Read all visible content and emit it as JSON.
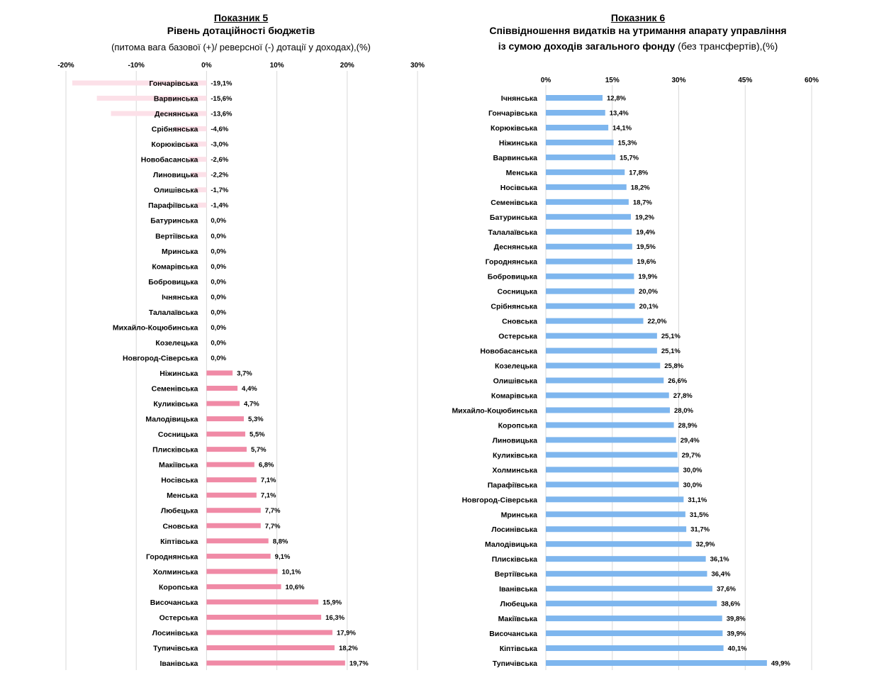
{
  "chart_data": [
    {
      "type": "bar",
      "orientation": "horizontal",
      "indicator": "Показник 5",
      "title": "Рівень дотаційності бюджетів",
      "subtitle": "(питома вага базової (+)/ реверсної (-) дотації  у доходах),(%)",
      "xlim": [
        -20,
        30
      ],
      "ticks": [
        -20,
        -10,
        0,
        10,
        20,
        30
      ],
      "tick_labels": [
        "-20%",
        "-10%",
        "0%",
        "10%",
        "20%",
        "30%"
      ],
      "grid": true,
      "colors": {
        "positive": "#f08aa6",
        "negative": "#fce0e8"
      },
      "categories": [
        "Гончарівська",
        "Варвинська",
        "Деснянська",
        "Срібнянська",
        "Корюківська",
        "Новобасанська",
        "Линовицька",
        "Олишівська",
        "Парафіївська",
        "Батуринська",
        "Вертіївська",
        "Мринська",
        "Комарівська",
        "Бобровицька",
        "Ічнянська",
        "Талалаївська",
        "Михайло-Коцюбинська",
        "Козелецька",
        "Новгород-Сіверська",
        "Ніжинська",
        "Семенівська",
        "Куликівська",
        "Малодівицька",
        "Сосницька",
        "Плисківська",
        "Макіївська",
        "Носівська",
        "Менська",
        "Любецька",
        "Сновська",
        "Кіптівська",
        "Городнянська",
        "Холминська",
        "Коропська",
        "Височанська",
        "Остерська",
        "Лосинівська",
        "Тупичівська",
        "Іванівська"
      ],
      "values": [
        -19.1,
        -15.6,
        -13.6,
        -4.6,
        -3.0,
        -2.6,
        -2.2,
        -1.7,
        -1.4,
        0.0,
        0.0,
        0.0,
        0.0,
        0.0,
        0.0,
        0.0,
        0.0,
        0.0,
        0.0,
        3.7,
        4.4,
        4.7,
        5.3,
        5.5,
        5.7,
        6.8,
        7.1,
        7.1,
        7.7,
        7.7,
        8.8,
        9.1,
        10.1,
        10.6,
        15.9,
        16.3,
        17.9,
        18.2,
        19.7
      ],
      "labels": [
        "-19,1%",
        "-15,6%",
        "-13,6%",
        "-4,6%",
        "-3,0%",
        "-2,6%",
        "-2,2%",
        "-1,7%",
        "-1,4%",
        "0,0%",
        "0,0%",
        "0,0%",
        "0,0%",
        "0,0%",
        "0,0%",
        "0,0%",
        "0,0%",
        "0,0%",
        "0,0%",
        "3,7%",
        "4,4%",
        "4,7%",
        "5,3%",
        "5,5%",
        "5,7%",
        "6,8%",
        "7,1%",
        "7,1%",
        "7,7%",
        "7,7%",
        "8,8%",
        "9,1%",
        "10,1%",
        "10,6%",
        "15,9%",
        "16,3%",
        "17,9%",
        "18,2%",
        "19,7%"
      ]
    },
    {
      "type": "bar",
      "orientation": "horizontal",
      "indicator": "Показник 6",
      "title_line1": "Співвідношення видатків на утримання апарату управління",
      "title_line2": "із сумою доходів загального фонду",
      "title_line2_suffix": " (без трансфертів),(%)",
      "xlim": [
        0,
        60
      ],
      "ticks": [
        0,
        15,
        30,
        45,
        60
      ],
      "tick_labels": [
        "0%",
        "15%",
        "30%",
        "45%",
        "60%"
      ],
      "grid": true,
      "colors": {
        "positive": "#7eb6ee"
      },
      "categories": [
        "Ічнянська",
        "Гончарівська",
        "Корюківська",
        "Ніжинська",
        "Варвинська",
        "Менська",
        "Носівська",
        "Семенівська",
        "Батуринська",
        "Талалаївська",
        "Деснянська",
        "Городнянська",
        "Бобровицька",
        "Сосницька",
        "Срібнянська",
        "Сновська",
        "Остерська",
        "Новобасанська",
        "Козелецька",
        "Олишівська",
        "Комарівська",
        "Михайло-Коцюбинська",
        "Коропська",
        "Линовицька",
        "Куликівська",
        "Холминська",
        "Парафіївська",
        "Новгород-Сіверська",
        "Мринська",
        "Лосинівська",
        "Малодівицька",
        "Плисківська",
        "Вертіївська",
        "Іванівська",
        "Любецька",
        "Макіївська",
        "Височанська",
        "Кіптівська",
        "Тупичівська"
      ],
      "values": [
        12.8,
        13.4,
        14.1,
        15.3,
        15.7,
        17.8,
        18.2,
        18.7,
        19.2,
        19.4,
        19.5,
        19.6,
        19.9,
        20.0,
        20.1,
        22.0,
        25.1,
        25.1,
        25.8,
        26.6,
        27.8,
        28.0,
        28.9,
        29.4,
        29.7,
        30.0,
        30.0,
        31.1,
        31.5,
        31.7,
        32.9,
        36.1,
        36.4,
        37.6,
        38.6,
        39.8,
        39.9,
        40.1,
        49.9
      ],
      "labels": [
        "12,8%",
        "13,4%",
        "14,1%",
        "15,3%",
        "15,7%",
        "17,8%",
        "18,2%",
        "18,7%",
        "19,2%",
        "19,4%",
        "19,5%",
        "19,6%",
        "19,9%",
        "20,0%",
        "20,1%",
        "22,0%",
        "25,1%",
        "25,1%",
        "25,8%",
        "26,6%",
        "27,8%",
        "28,0%",
        "28,9%",
        "29,4%",
        "29,7%",
        "30,0%",
        "30,0%",
        "31,1%",
        "31,5%",
        "31,7%",
        "32,9%",
        "36,1%",
        "36,4%",
        "37,6%",
        "38,6%",
        "39,8%",
        "39,9%",
        "40,1%",
        "49,9%"
      ]
    }
  ]
}
